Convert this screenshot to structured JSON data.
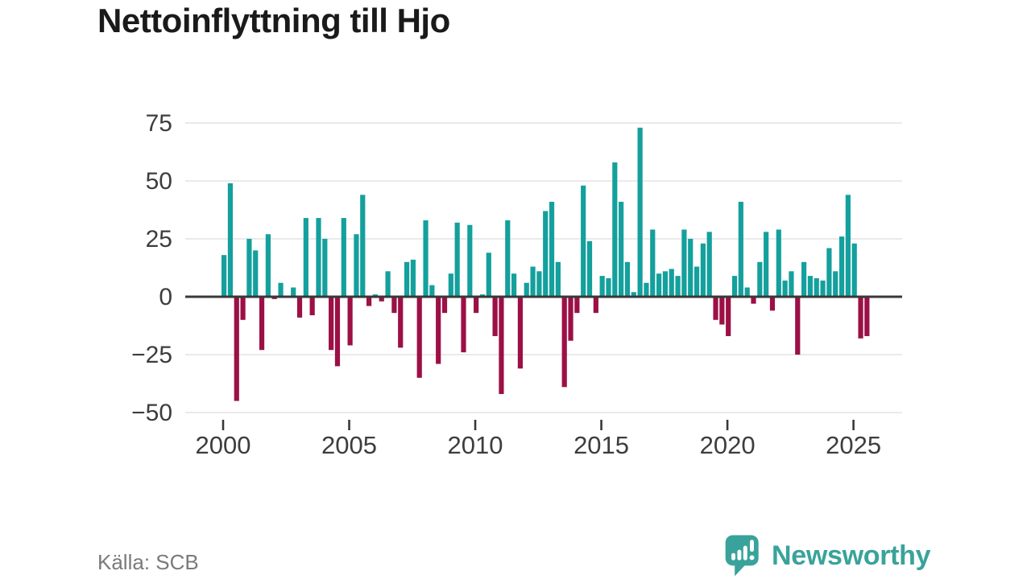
{
  "title": "Nettoinflyttning till Hjo",
  "source_label": "Källa: SCB",
  "branding": {
    "logo_text": "Newsworthy"
  },
  "colors": {
    "positive": "#14a09d",
    "negative": "#9c1046",
    "axis": "#383838",
    "grid": "#e4e4e4",
    "tick_text": "#3d3d3d",
    "title_text": "#1a1a1a",
    "source_text": "#7a7a7a",
    "brand": "#39a39b"
  },
  "chart_data": {
    "type": "bar",
    "title": "Nettoinflyttning till Hjo",
    "x_unit": "quarter",
    "first_quarter": "2000 Q1",
    "last_quarter": "2025 Q3",
    "values_by_year": {
      "2000": [
        18,
        49,
        -45,
        -10
      ],
      "2001": [
        25,
        20,
        -23,
        27
      ],
      "2002": [
        -1,
        6,
        0,
        4
      ],
      "2003": [
        -9,
        34,
        -8,
        34
      ],
      "2004": [
        25,
        -23,
        -30,
        34
      ],
      "2005": [
        -21,
        27,
        44,
        -4
      ],
      "2006": [
        1,
        -2,
        11,
        -7
      ],
      "2007": [
        -22,
        15,
        16,
        -35
      ],
      "2008": [
        33,
        5,
        -29,
        -7
      ],
      "2009": [
        10,
        32,
        -24,
        31
      ],
      "2010": [
        -7,
        1,
        19,
        -17
      ],
      "2011": [
        -42,
        33,
        10,
        -31
      ],
      "2012": [
        6,
        13,
        11,
        37
      ],
      "2013": [
        41,
        15,
        -39,
        -19
      ],
      "2014": [
        -7,
        48,
        24,
        -7
      ],
      "2015": [
        9,
        8,
        58,
        41
      ],
      "2016": [
        15,
        2,
        73,
        6
      ],
      "2017": [
        29,
        10,
        11,
        12
      ],
      "2018": [
        9,
        29,
        25,
        13
      ],
      "2019": [
        23,
        28,
        -10,
        -12
      ],
      "2020": [
        -17,
        9,
        41,
        4
      ],
      "2021": [
        -3,
        15,
        28,
        -6
      ],
      "2022": [
        29,
        7,
        11,
        -25
      ],
      "2023": [
        15,
        9,
        8,
        7
      ],
      "2024": [
        21,
        11,
        26,
        44
      ],
      "2025": [
        23,
        -18,
        -17
      ]
    },
    "x_tick_labels": [
      "2000",
      "2005",
      "2010",
      "2015",
      "2020",
      "2025"
    ],
    "y_tick_labels": [
      "75",
      "50",
      "25",
      "0",
      "−25",
      "−50"
    ],
    "y_tick_values": [
      75,
      50,
      25,
      0,
      -25,
      -50
    ],
    "ylim": [
      -50,
      75
    ],
    "grid": "horizontal",
    "legend": "none",
    "positive_color": "#14a09d",
    "negative_color": "#9c1046"
  }
}
